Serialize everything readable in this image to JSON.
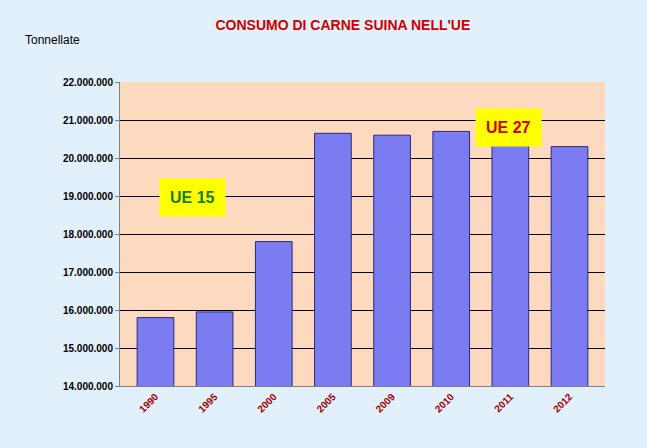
{
  "chart_data": {
    "type": "bar",
    "title": "CONSUMO DI CARNE SUINA NELL'UE",
    "ylabel": "Tonnellate",
    "categories": [
      "1990",
      "1995",
      "2000",
      "2005",
      "2009",
      "2010",
      "2011",
      "2012"
    ],
    "values": [
      15800000,
      15950000,
      17800000,
      20650000,
      20600000,
      20700000,
      20400000,
      20300000
    ],
    "color": "#7c7cf2",
    "ylim": [
      14000000,
      22000000
    ],
    "yticks": [
      {
        "value": 14000000,
        "label": "14.000.000"
      },
      {
        "value": 15000000,
        "label": "15.000.000"
      },
      {
        "value": 16000000,
        "label": "16.000.000"
      },
      {
        "value": 17000000,
        "label": "17.000.000"
      },
      {
        "value": 18000000,
        "label": "18.000.000"
      },
      {
        "value": 19000000,
        "label": "19.000.000"
      },
      {
        "value": 20000000,
        "label": "20.000.000"
      },
      {
        "value": 21000000,
        "label": "21.000.000"
      },
      {
        "value": 22000000,
        "label": "22.000.000"
      }
    ],
    "grid": true,
    "annotations": [
      {
        "text": "UE 15"
      },
      {
        "text": "UE 27"
      }
    ]
  }
}
